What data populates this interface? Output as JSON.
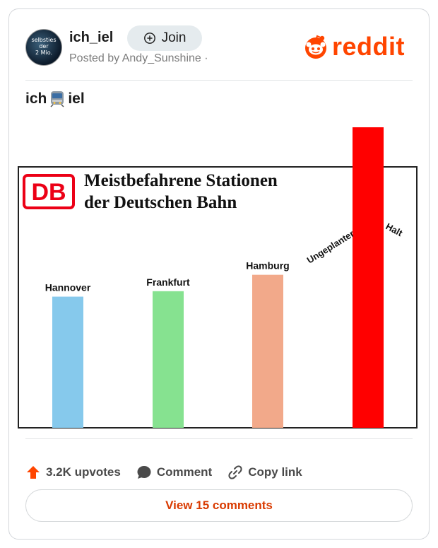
{
  "post": {
    "avatar_text": [
      "selbsties",
      "der",
      "2 Mio."
    ],
    "subreddit": "ich_iel",
    "join_label": "Join",
    "posted_by": "Posted by Andy_Sunshine ·",
    "brand": "reddit",
    "title_prefix": "ich",
    "title_suffix": "iel",
    "title_icon": "train-icon"
  },
  "image": {
    "logo_text": "DB",
    "heading_line1": "Meistbefahrene Stationen",
    "heading_line2": "der Deutschen Bahn",
    "colors": {
      "db_red": "#ec0016",
      "frame": "#222222"
    }
  },
  "chart_data": {
    "type": "bar",
    "title": "Meistbefahrene Stationen der Deutschen Bahn",
    "categories": [
      "Hannover",
      "Frankfurt",
      "Hamburg",
      "Ungeplanter Halt"
    ],
    "values": [
      24,
      25,
      28,
      55
    ],
    "colors": [
      "#86c9ec",
      "#86e290",
      "#f2a98a",
      "#ff0000"
    ],
    "label_words": [
      [
        "Hannover"
      ],
      [
        "Frankfurt"
      ],
      [
        "Hamburg"
      ],
      [
        "Ungeplanter",
        "Halt"
      ]
    ],
    "ylim": [
      0,
      55
    ],
    "grid": false,
    "legend": "none"
  },
  "actions": {
    "upvotes": "3.2K upvotes",
    "comment": "Comment",
    "copy_link": "Copy link",
    "view_comments": "View 15 comments"
  }
}
